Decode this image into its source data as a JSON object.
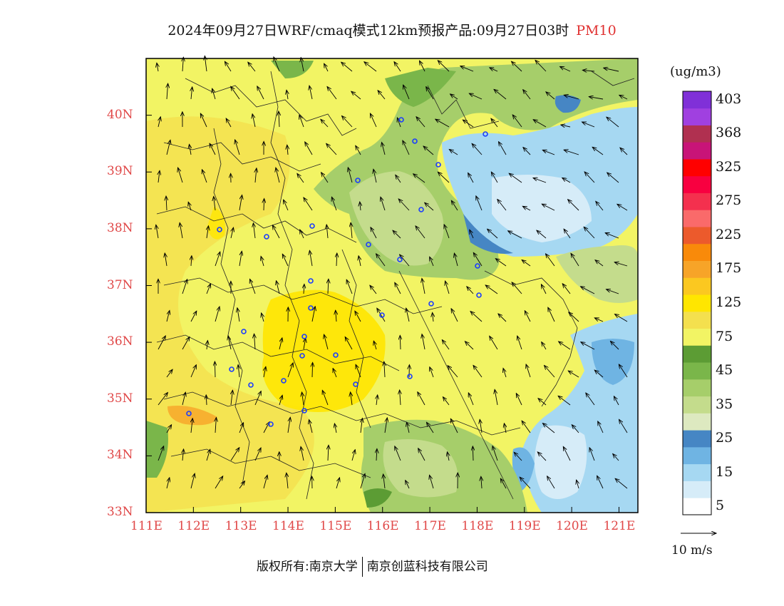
{
  "title": {
    "main": "2024年09月27日WRF/cmaq模式12km预报产品:09月27日03时",
    "pollutant": "PM10"
  },
  "map": {
    "lon_range": [
      111,
      121.4
    ],
    "lat_range": [
      33,
      41
    ],
    "lon_ticks": [
      "111E",
      "112E",
      "113E",
      "114E",
      "115E",
      "116E",
      "117E",
      "118E",
      "119E",
      "120E",
      "121E"
    ],
    "lat_ticks": [
      "33N",
      "34N",
      "35N",
      "36N",
      "37N",
      "38N",
      "39N",
      "40N"
    ]
  },
  "colorbar": {
    "unit": "(ug/m3)",
    "colors": [
      "#ffffff",
      "#d6ecf8",
      "#a6d8f2",
      "#6fb4e3",
      "#4686c4",
      "#dde9c0",
      "#c4dc8c",
      "#a6ce6a",
      "#7ab64a",
      "#5c9c34",
      "#f2f464",
      "#f4e04e",
      "#ffe600",
      "#fbc820",
      "#f7a428",
      "#f98a0a",
      "#ec5a2c",
      "#fa6a6a",
      "#f4304e",
      "#f80040",
      "#ff0000",
      "#c81478",
      "#b03050",
      "#a040e0",
      "#8030d8"
    ],
    "labels": [
      {
        "text": "5",
        "index": 1
      },
      {
        "text": "15",
        "index": 3
      },
      {
        "text": "25",
        "index": 5
      },
      {
        "text": "35",
        "index": 7
      },
      {
        "text": "45",
        "index": 9
      },
      {
        "text": "75",
        "index": 11
      },
      {
        "text": "125",
        "index": 13
      },
      {
        "text": "175",
        "index": 15
      },
      {
        "text": "225",
        "index": 17
      },
      {
        "text": "275",
        "index": 19
      },
      {
        "text": "325",
        "index": 21
      },
      {
        "text": "368",
        "index": 23
      },
      {
        "text": "403",
        "index": 25
      }
    ]
  },
  "wind_reference": {
    "text": "10 m/s"
  },
  "footer": {
    "left": "版权所有:南京大学",
    "right": "南京创蓝科技有限公司"
  },
  "colors": {
    "tick_label": "#e04848",
    "title_pollutant": "#e03030"
  }
}
